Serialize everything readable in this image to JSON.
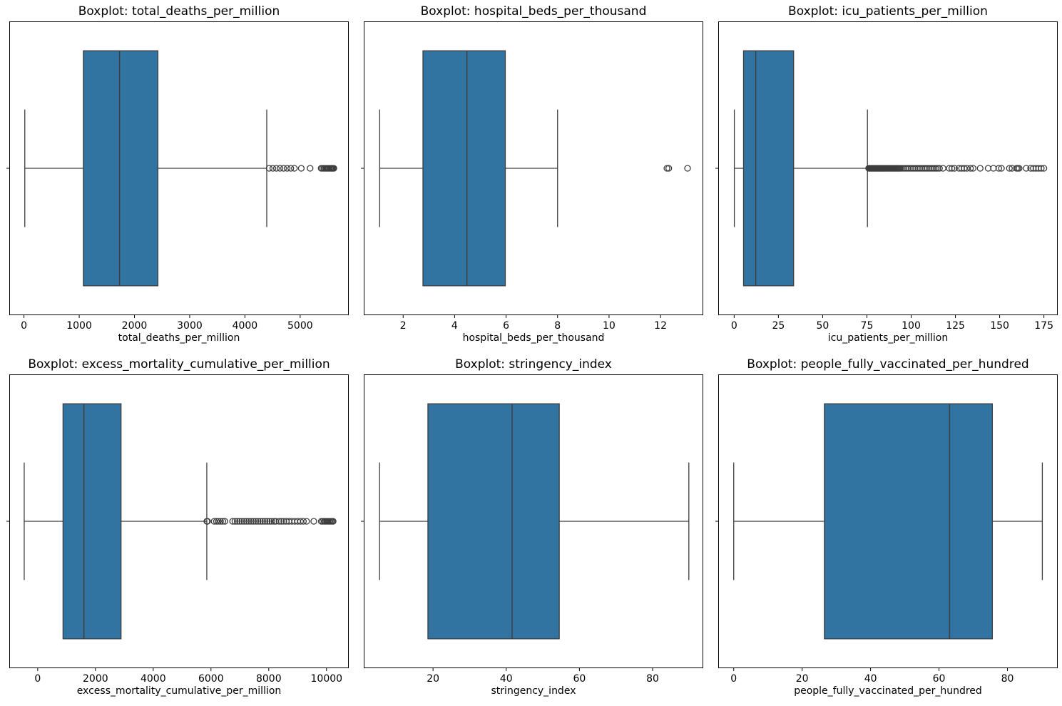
{
  "figure": {
    "background": "#ffffff",
    "box_fill": "#3274a1",
    "line_color": "#3d3d3d",
    "spine_color": "#000000",
    "text_color": "#000000"
  },
  "chart_data": [
    {
      "type": "boxplot",
      "orientation": "horizontal",
      "title": "Boxplot: total_deaths_per_million",
      "xlabel": "total_deaths_per_million",
      "xlim": [
        -266,
        5880
      ],
      "xticks": [
        0,
        1000,
        2000,
        3000,
        4000,
        5000
      ],
      "stats": {
        "whisker_low": 15,
        "q1": 1075,
        "median": 1730,
        "q3": 2425,
        "whisker_high": 4395
      },
      "outliers": [
        4440,
        4505,
        4570,
        4635,
        4700,
        4765,
        4830,
        4895,
        5020,
        5180,
        5380,
        5405,
        5430,
        5450,
        5470,
        5490,
        5510,
        5530,
        5550,
        5565,
        5580,
        5595,
        5610
      ]
    },
    {
      "type": "boxplot",
      "orientation": "horizontal",
      "title": "Boxplot: hospital_beds_per_thousand",
      "xlabel": "hospital_beds_per_thousand",
      "xlim": [
        0.47,
        13.66
      ],
      "xticks": [
        2,
        4,
        6,
        8,
        10,
        12
      ],
      "stats": {
        "whisker_low": 1.09,
        "q1": 2.77,
        "median": 4.48,
        "q3": 5.97,
        "whisker_high": 8.0
      },
      "outliers": [
        12.25,
        12.32,
        13.05
      ]
    },
    {
      "type": "boxplot",
      "orientation": "horizontal",
      "title": "Boxplot: icu_patients_per_million",
      "xlabel": "icu_patients_per_million",
      "xlim": [
        -9,
        182.8
      ],
      "xticks": [
        0,
        25,
        50,
        75,
        100,
        125,
        150,
        175
      ],
      "stats": {
        "whisker_low": 0.1,
        "q1": 5.3,
        "median": 12.2,
        "q3": 33.6,
        "whisker_high": 75.3
      },
      "outliers": [
        76,
        76.4,
        76.8,
        77.2,
        77.6,
        78,
        78.4,
        78.8,
        79.2,
        79.6,
        80,
        80.4,
        80.8,
        81.2,
        81.6,
        82,
        82.4,
        82.8,
        83.2,
        83.6,
        84,
        84.5,
        85,
        85.5,
        86,
        86.5,
        87,
        87.5,
        88,
        88.5,
        89,
        89.5,
        90,
        90.5,
        91,
        91.5,
        92,
        92.5,
        93,
        93.5,
        94,
        95,
        96,
        97,
        98,
        99,
        100,
        101,
        102,
        103,
        104,
        105,
        106,
        107,
        108,
        109,
        110,
        111,
        112,
        113,
        114,
        115,
        116,
        118,
        121.5,
        123,
        124.5,
        127,
        128.5,
        130,
        131.5,
        133.5,
        135,
        139,
        143.5,
        146.5,
        149.5,
        151,
        155.5,
        157,
        159.5,
        160.2,
        161,
        165,
        167.5,
        169,
        170.5,
        172,
        173.5,
        175
      ]
    },
    {
      "type": "boxplot",
      "orientation": "horizontal",
      "title": "Boxplot: excess_mortality_cumulative_per_million",
      "xlabel": "excess_mortality_cumulative_per_million",
      "xlim": [
        -984,
        10771
      ],
      "xticks": [
        0,
        2000,
        4000,
        6000,
        8000,
        10000
      ],
      "stats": {
        "whisker_low": -467,
        "q1": 877,
        "median": 1600,
        "q3": 2886,
        "whisker_high": 5855
      },
      "outliers": [
        5858,
        5868,
        5878,
        6110,
        6190,
        6255,
        6330,
        6410,
        6480,
        6750,
        6830,
        6910,
        6990,
        7070,
        7150,
        7230,
        7310,
        7390,
        7470,
        7550,
        7630,
        7710,
        7790,
        7870,
        7950,
        8030,
        8110,
        8190,
        8250,
        8360,
        8440,
        8520,
        8610,
        8700,
        8800,
        8900,
        9000,
        9100,
        9200,
        9310,
        9560,
        9820,
        9870,
        9920,
        9960,
        10000,
        10040,
        10080,
        10120,
        10160,
        10200,
        10230
      ]
    },
    {
      "type": "boxplot",
      "orientation": "horizontal",
      "title": "Boxplot: stringency_index",
      "xlabel": "stringency_index",
      "xlim": [
        1.07,
        93.84
      ],
      "xticks": [
        20,
        40,
        60,
        80
      ],
      "stats": {
        "whisker_low": 5.4,
        "q1": 18.6,
        "median": 41.6,
        "q3": 54.5,
        "whisker_high": 89.9
      },
      "outliers": []
    },
    {
      "type": "boxplot",
      "orientation": "horizontal",
      "title": "Boxplot: people_fully_vaccinated_per_hundred",
      "xlabel": "people_fully_vaccinated_per_hundred",
      "xlim": [
        -4.53,
        94.7
      ],
      "xticks": [
        0,
        20,
        40,
        60,
        80
      ],
      "stats": {
        "whisker_low": 0.0,
        "q1": 26.5,
        "median": 63.1,
        "q3": 75.6,
        "whisker_high": 90.2
      },
      "outliers": []
    }
  ]
}
